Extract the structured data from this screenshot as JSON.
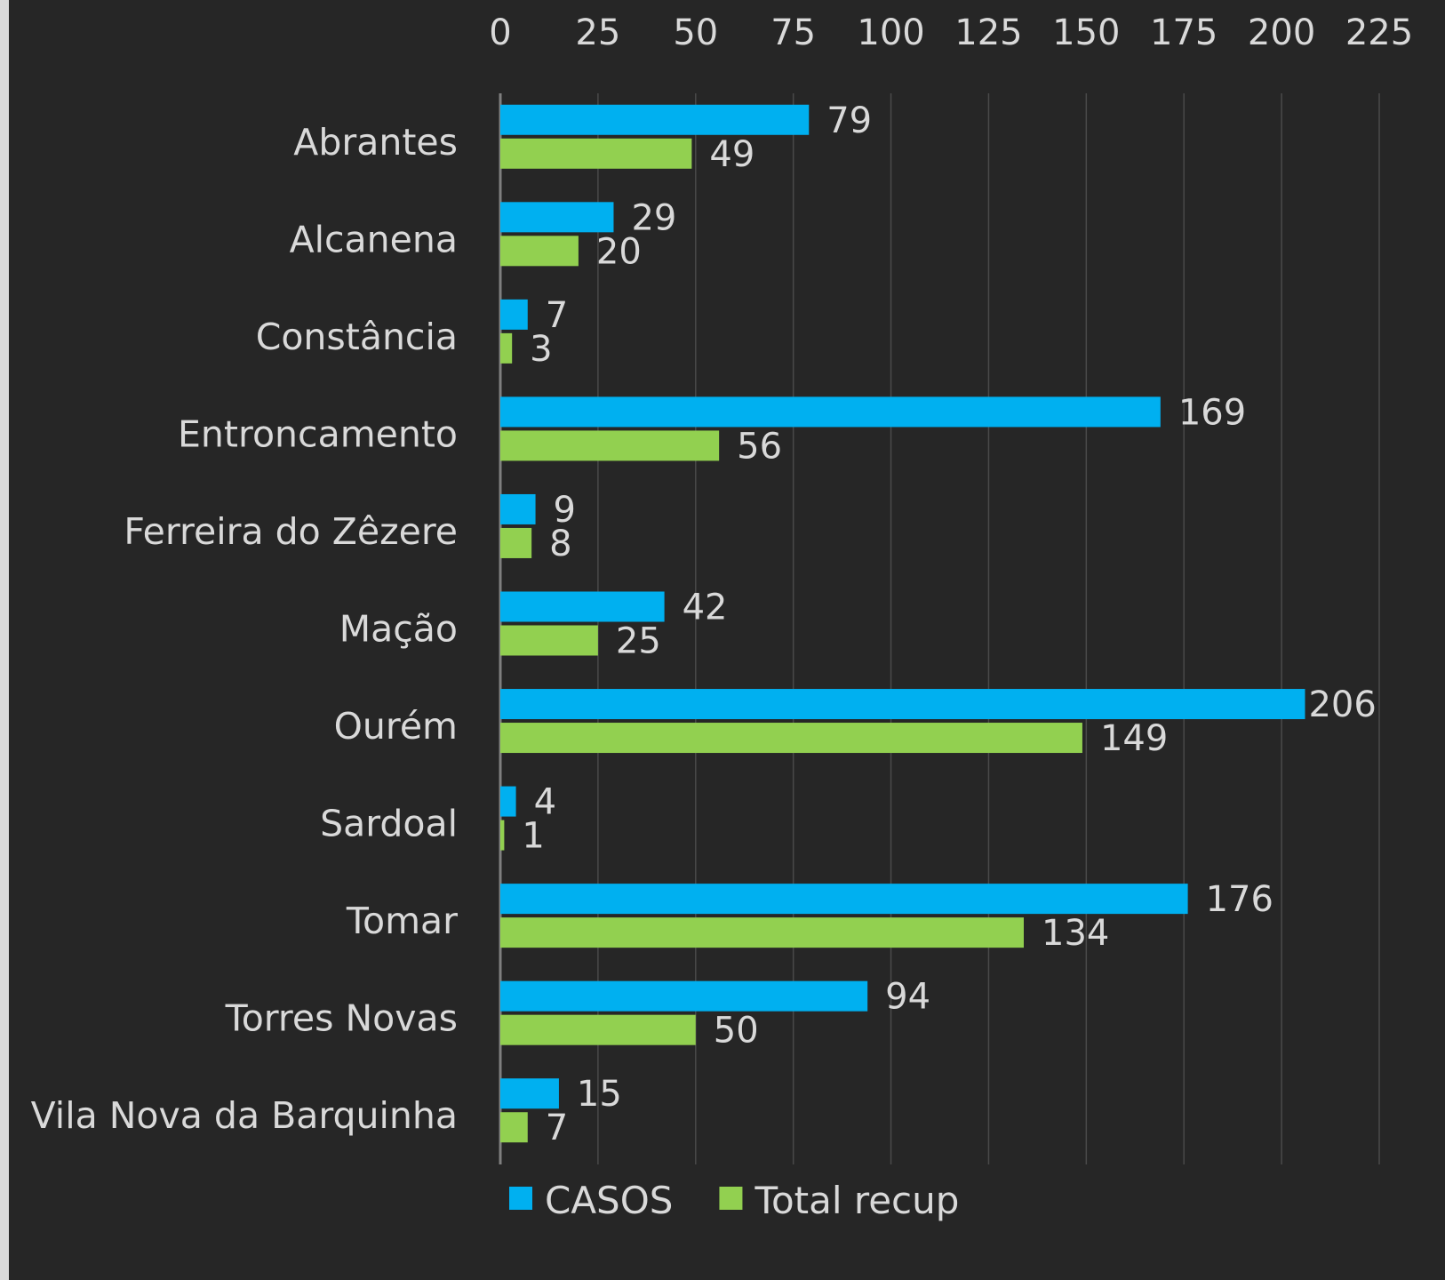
{
  "chart_data": {
    "type": "bar",
    "orientation": "horizontal",
    "categories": [
      "Abrantes",
      "Alcanena",
      "Constância",
      "Entroncamento",
      "Ferreira do Zêzere",
      "Mação",
      "Ourém",
      "Sardoal",
      "Tomar",
      "Torres Novas",
      "Vila Nova da Barquinha"
    ],
    "series": [
      {
        "name": "CASOS",
        "color": "#00b0f0",
        "values": [
          79,
          29,
          7,
          169,
          9,
          42,
          206,
          4,
          176,
          94,
          15
        ]
      },
      {
        "name": "Total recup",
        "color": "#92d050",
        "values": [
          49,
          20,
          3,
          56,
          8,
          25,
          149,
          1,
          134,
          50,
          7
        ]
      }
    ],
    "xlim": [
      0,
      225
    ],
    "xticks": [
      "0",
      "25",
      "50",
      "75",
      "100",
      "125",
      "150",
      "175",
      "200",
      "225"
    ],
    "x_axis_position": "top",
    "grid": true,
    "data_labels": true,
    "legend_position": "bottom",
    "colors": {
      "background": "#262626",
      "text": "#d9d9d9",
      "grid": "#4a4a4a"
    }
  }
}
